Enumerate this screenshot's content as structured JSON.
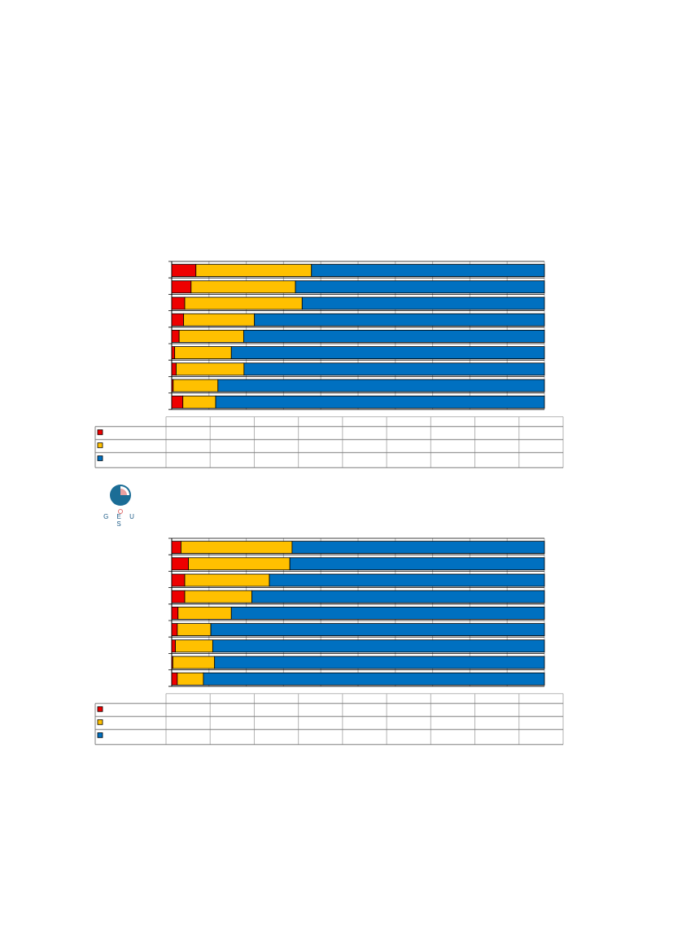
{
  "colors": {
    "red": "#ee0000",
    "yellow": "#ffc000",
    "blue": "#0070c0",
    "grid": "#b3b3b3",
    "logo": "#1b6d96"
  },
  "logo": {
    "text": "G E U S",
    "icon": "geus-logo-icon"
  },
  "chart_data": [
    {
      "type": "bar",
      "orientation": "horizontal",
      "stacked": true,
      "percent": true,
      "xlim": [
        0,
        100
      ],
      "grid": true,
      "legend": "table-below",
      "categories": [
        "",
        "",
        "",
        "",
        "",
        "",
        "",
        "",
        ""
      ],
      "series": [
        {
          "color": "#ee0000",
          "values": [
            6.5,
            5.2,
            3.5,
            3.2,
            2.0,
            0.8,
            1.2,
            0.4,
            3.0
          ]
        },
        {
          "color": "#ffc000",
          "values": [
            31.0,
            28.0,
            31.5,
            19.0,
            17.3,
            15.2,
            18.2,
            12.0,
            8.8
          ]
        },
        {
          "color": "#0070c0",
          "values": [
            62.5,
            66.8,
            65.0,
            77.8,
            80.7,
            84.0,
            80.6,
            87.6,
            88.2
          ]
        }
      ]
    },
    {
      "type": "bar",
      "orientation": "horizontal",
      "stacked": true,
      "percent": true,
      "xlim": [
        0,
        100
      ],
      "grid": true,
      "legend": "table-below",
      "categories": [
        "",
        "",
        "",
        "",
        "",
        "",
        "",
        "",
        ""
      ],
      "series": [
        {
          "color": "#ee0000",
          "values": [
            2.5,
            4.5,
            3.5,
            3.5,
            1.7,
            1.5,
            1.0,
            0.3,
            1.5
          ]
        },
        {
          "color": "#ffc000",
          "values": [
            29.8,
            27.2,
            22.7,
            18.0,
            14.3,
            9.0,
            10.0,
            11.2,
            7.0
          ]
        },
        {
          "color": "#0070c0",
          "values": [
            67.7,
            68.3,
            73.8,
            78.5,
            84.0,
            89.5,
            89.0,
            88.5,
            91.5
          ]
        }
      ]
    }
  ]
}
